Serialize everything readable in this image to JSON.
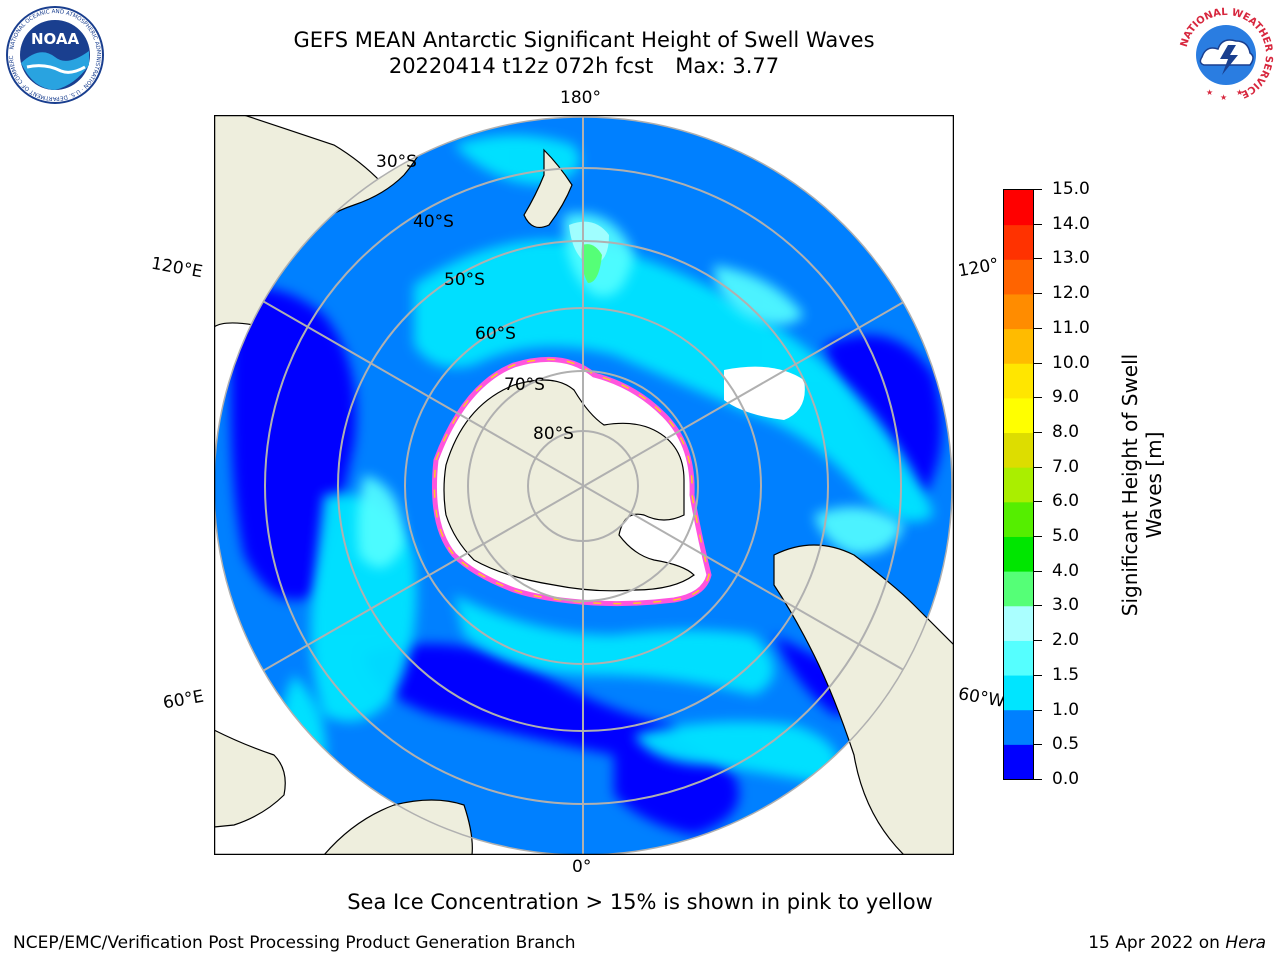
{
  "title": {
    "line1": "GEFS MEAN Antarctic Significant Height of Swell Waves",
    "line2_left": "20220414 t12z 072h fcst",
    "line2_right": "Max: 3.77"
  },
  "map": {
    "projection": "south polar stereographic",
    "longitude_labels": {
      "top": "180°",
      "bottom": "0°",
      "left_upper": "120°E",
      "left_lower": "60°E",
      "right_upper": "120°",
      "right_lower": "60°W"
    },
    "latitude_labels": [
      "30°S",
      "40°S",
      "50°S",
      "60°S",
      "70°S",
      "80°S"
    ],
    "colors": {
      "land": "#eeeedd",
      "sea_ice": "#ffffff",
      "grid": "#b0b0b0",
      "coast": "#000000"
    }
  },
  "colorbar": {
    "label_line1": "Significant Height of Swell",
    "label_line2": "Waves [m]",
    "ticks": [
      "0.0",
      "0.5",
      "1.0",
      "1.5",
      "2.0",
      "3.0",
      "4.0",
      "5.0",
      "6.0",
      "7.0",
      "8.0",
      "9.0",
      "10.0",
      "11.0",
      "12.0",
      "13.0",
      "14.0",
      "15.0"
    ],
    "colors": [
      "#0000ff",
      "#0080ff",
      "#00e5ff",
      "#55ffff",
      "#aaffff",
      "#55ff77",
      "#00e600",
      "#55ee00",
      "#aaee00",
      "#dddd00",
      "#ffff00",
      "#ffe600",
      "#ffbb00",
      "#ff8c00",
      "#ff6400",
      "#ff3200",
      "#ff0000"
    ]
  },
  "note": "Sea Ice Concentration > 15% is shown in pink to yellow",
  "footer": {
    "left": "NCEP/EMC/Verification Post Processing Product Generation Branch",
    "right_prefix": "15 Apr 2022 on",
    "right_machine": "Hera"
  },
  "logos": {
    "noaa_text": "NOAA",
    "noaa_ring_text": "NATIONAL OCEANIC AND ATMOSPHERIC ADMINISTRATION · U.S. DEPARTMENT OF COMMERCE",
    "nws_ring_text": "NATIONAL WEATHER SERVICE"
  }
}
